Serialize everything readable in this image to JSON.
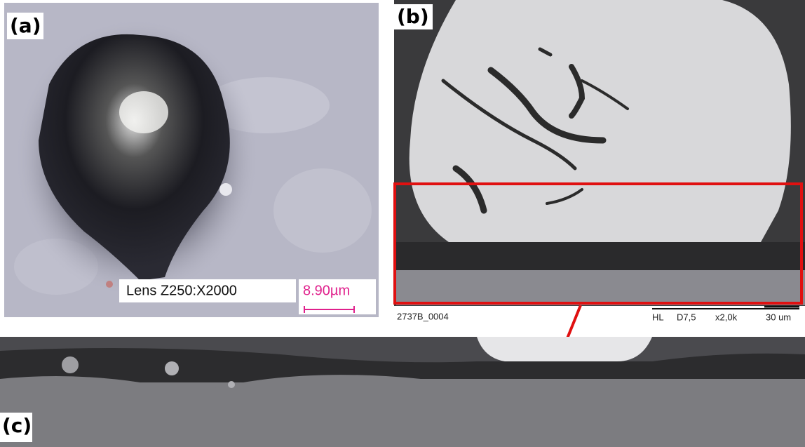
{
  "panels": {
    "a": {
      "label": "(a)",
      "lens": "Lens Z250:X2000",
      "scale": "8.90µm"
    },
    "b": {
      "label": "(b)",
      "image_id": "2737B_0004",
      "info": [
        "HL",
        "D7,5",
        "x2,0k",
        "30 um"
      ]
    },
    "c": {
      "label": "(c)"
    }
  }
}
